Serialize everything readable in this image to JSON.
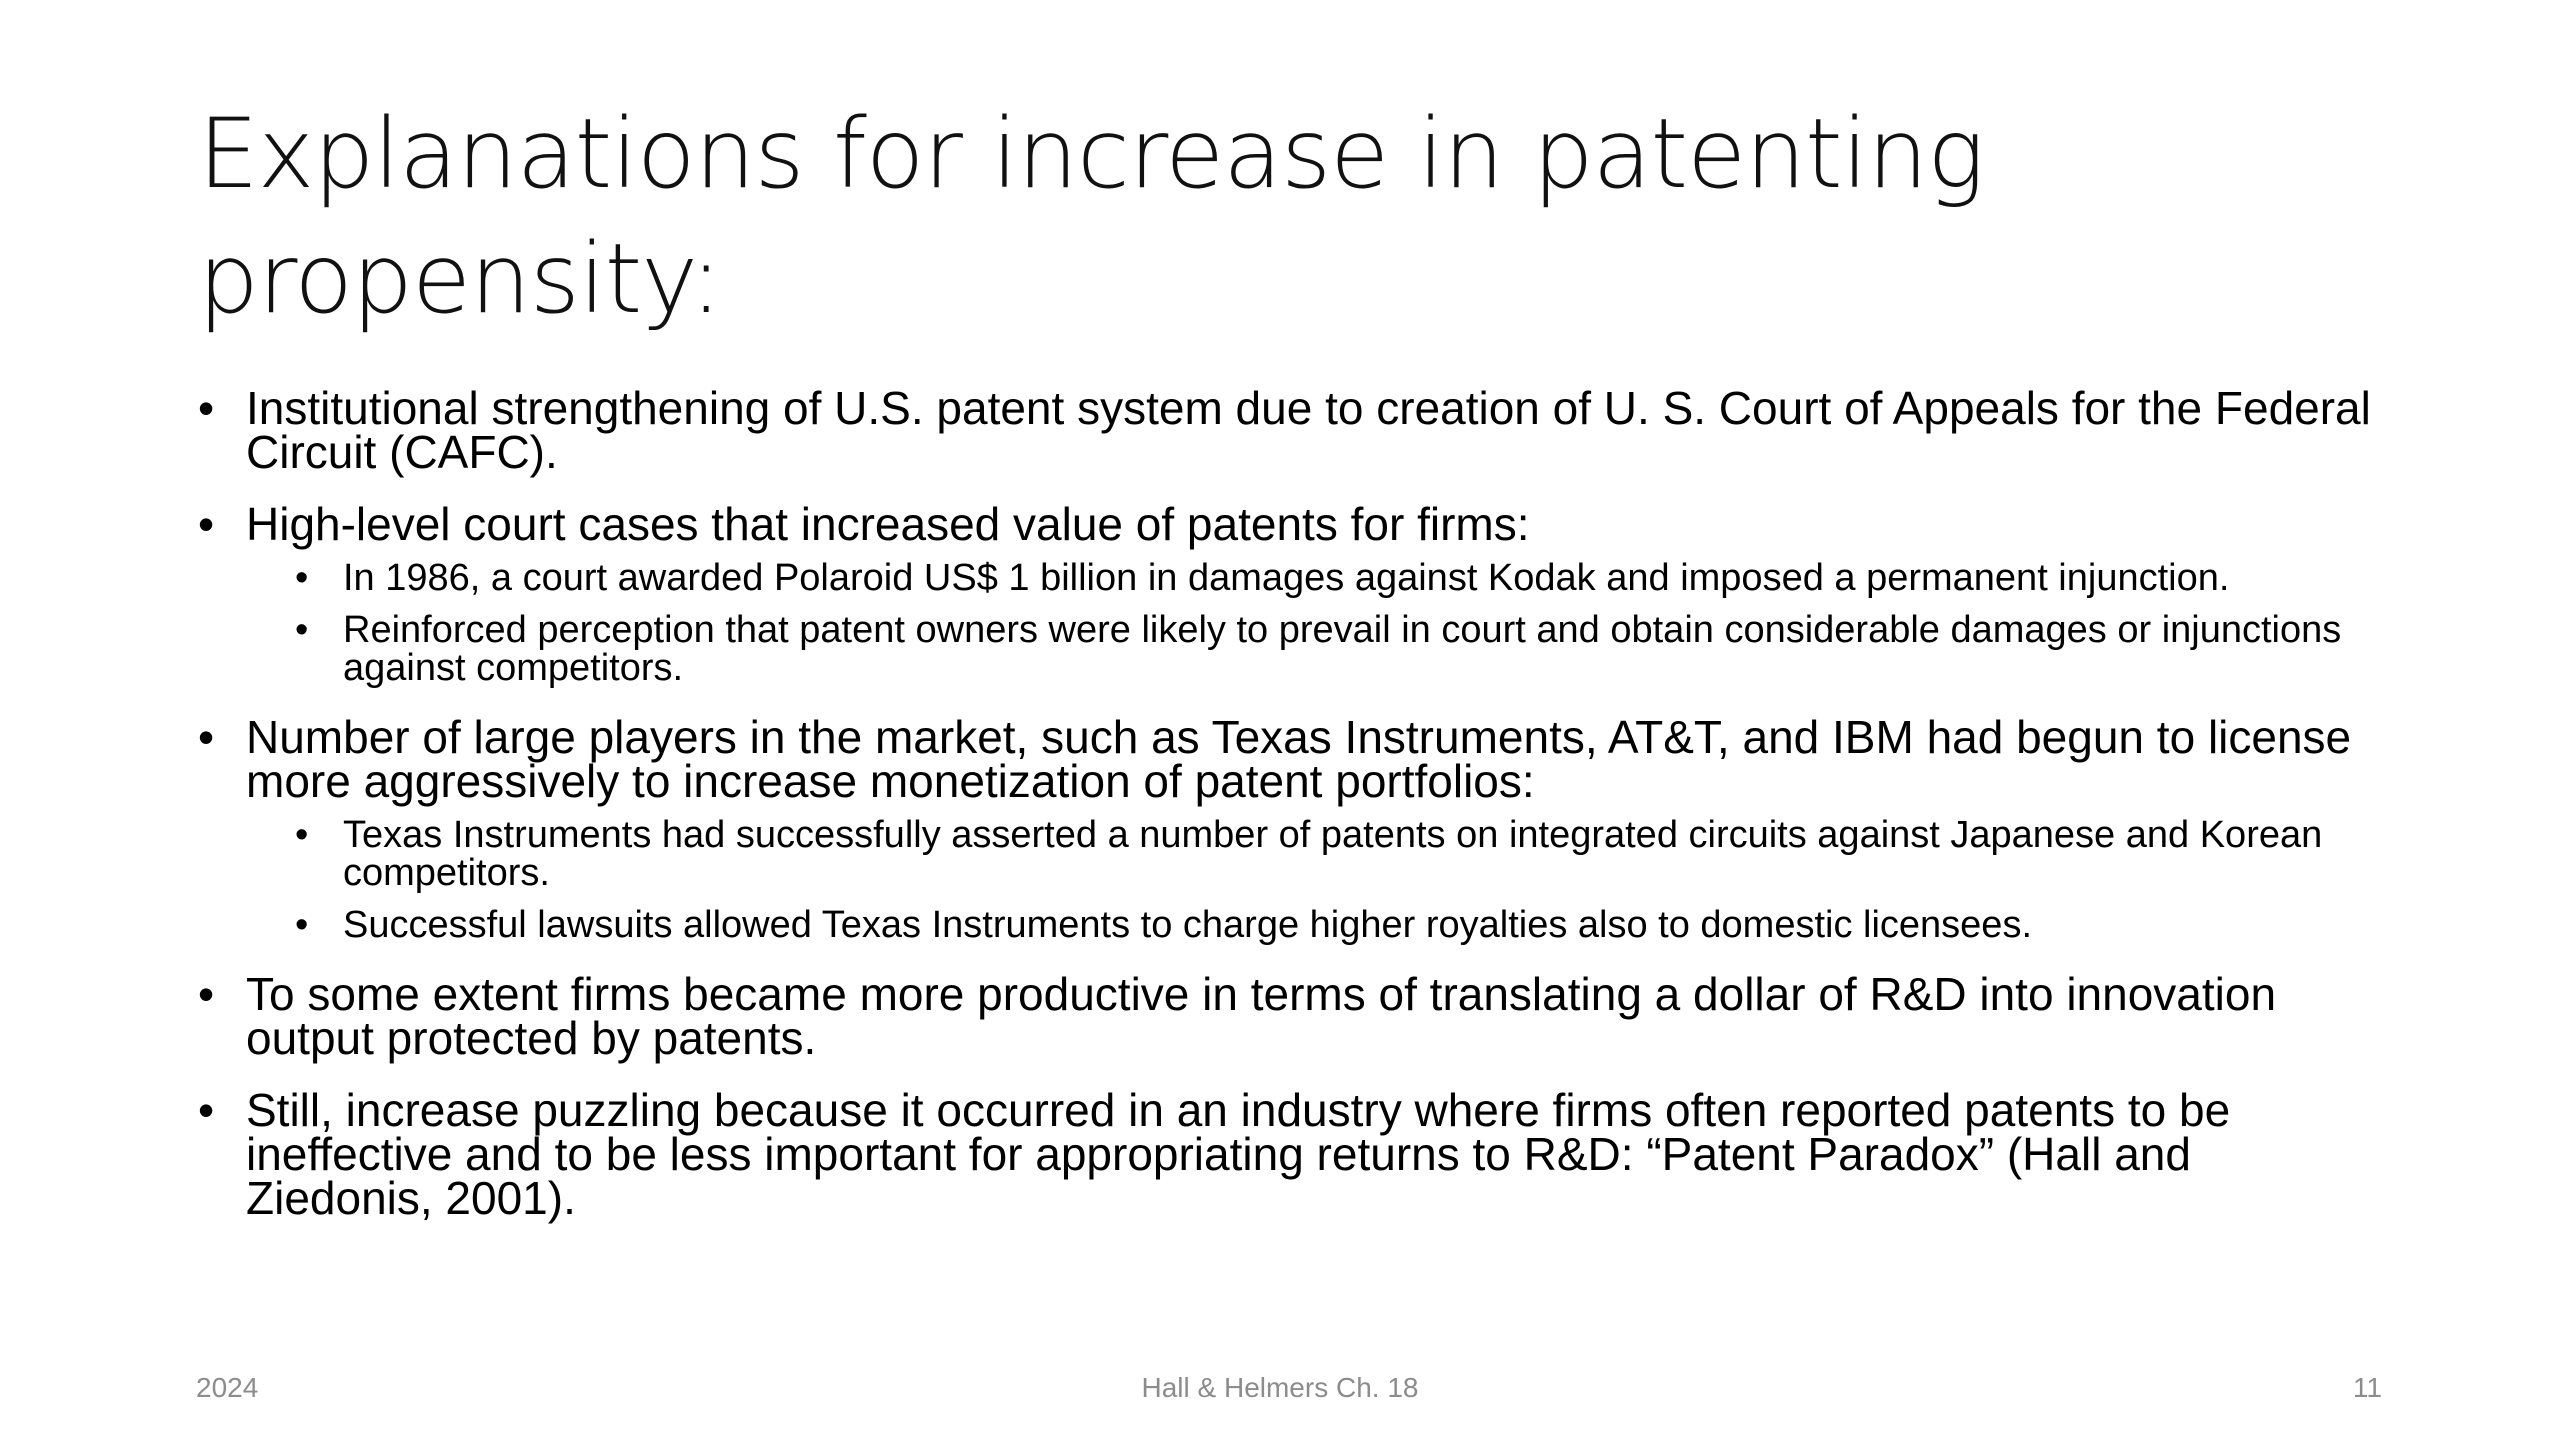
{
  "slide": {
    "title": "Explanations for increase in patenting propensity:",
    "bullets": [
      {
        "text": "Institutional strengthening of U.S. patent system due to creation of U. S. Court of Appeals for the Federal Circuit (CAFC)."
      },
      {
        "text": "High-level court cases that increased value of patents for firms:",
        "subbullets": [
          "In 1986, a court awarded Polaroid US$ 1 billion in damages against Kodak and imposed a permanent injunction.",
          "Reinforced perception that patent owners were likely to prevail in court and obtain considerable damages or injunctions against competitors."
        ]
      },
      {
        "text": "Number of large players in the market, such as Texas Instruments, AT&T, and IBM had begun to license more aggressively to increase monetization of patent portfolios:",
        "subbullets": [
          "Texas Instruments had successfully asserted a number of patents on integrated circuits against Japanese and Korean competitors.",
          "Successful lawsuits allowed Texas Instruments to charge higher royalties also to domestic licensees."
        ]
      },
      {
        "text": "To some extent firms became more productive in terms of translating a dollar of R&D into innovation output protected by patents."
      },
      {
        "text": "Still, increase puzzling because it occurred in an industry where firms often reported patents to be ineffective and to be less important for appropriating returns to R&D: “Patent Paradox” (Hall and Ziedonis, 2001)."
      }
    ],
    "bullet_char": "•"
  },
  "footer": {
    "left": "2024",
    "center": "Hall & Helmers Ch. 18",
    "right": "11"
  }
}
